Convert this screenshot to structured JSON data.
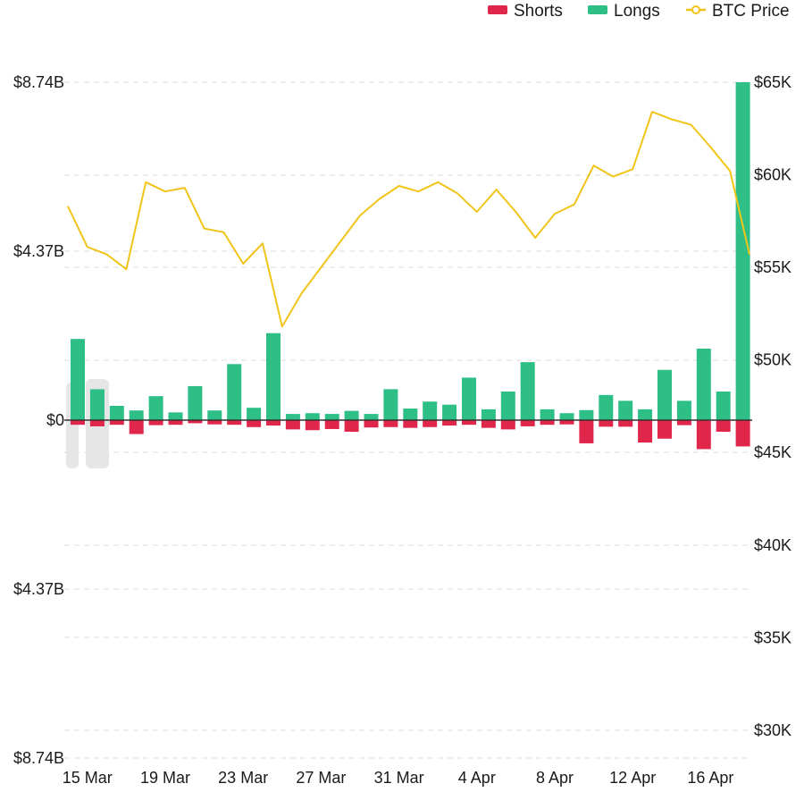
{
  "chart_data": {
    "type": "bar",
    "legend": {
      "placement": "top-right",
      "entries": [
        {
          "name": "Shorts",
          "color": "#e0264b",
          "marker": "bar"
        },
        {
          "name": "Longs",
          "color": "#2ebf86",
          "marker": "bar"
        },
        {
          "name": "BTC Price",
          "color": "#f0c419",
          "marker": "line"
        }
      ]
    },
    "left_axis": {
      "ticks": [
        {
          "value": 8.74,
          "label": "$8.74B"
        },
        {
          "value": 4.37,
          "label": "$4.37B"
        },
        {
          "value": 0,
          "label": "$0"
        },
        {
          "value": -4.37,
          "label": "$4.37B"
        },
        {
          "value": -8.74,
          "label": "$8.74B"
        }
      ],
      "range": [
        -8.74,
        8.74
      ]
    },
    "right_axis": {
      "ticks": [
        {
          "value": 65000,
          "label": "$65K"
        },
        {
          "value": 60000,
          "label": "$60K"
        },
        {
          "value": 55000,
          "label": "$55K"
        },
        {
          "value": 50000,
          "label": "$50K"
        },
        {
          "value": 45000,
          "label": "$45K"
        },
        {
          "value": 40000,
          "label": "$40K"
        },
        {
          "value": 35000,
          "label": "$35K"
        },
        {
          "value": 30000,
          "label": "$30K"
        }
      ],
      "range": [
        28500,
        65000
      ]
    },
    "x_ticks": [
      {
        "index": 1,
        "label": "15 Mar"
      },
      {
        "index": 5,
        "label": "19 Mar"
      },
      {
        "index": 9,
        "label": "23 Mar"
      },
      {
        "index": 13,
        "label": "27 Mar"
      },
      {
        "index": 17,
        "label": "31 Mar"
      },
      {
        "index": 21,
        "label": "4 Apr"
      },
      {
        "index": 25,
        "label": "8 Apr"
      },
      {
        "index": 29,
        "label": "12 Apr"
      },
      {
        "index": 33,
        "label": "16 Apr"
      }
    ],
    "series": [
      {
        "name": "Longs",
        "values": [
          2.1,
          0.8,
          0.37,
          0.25,
          0.62,
          0.2,
          0.88,
          0.25,
          1.45,
          0.32,
          2.25,
          0.16,
          0.18,
          0.16,
          0.24,
          0.16,
          0.8,
          0.3,
          0.48,
          0.4,
          1.1,
          0.28,
          0.74,
          1.5,
          0.28,
          0.18,
          0.26,
          0.65,
          0.5,
          0.28,
          1.3,
          0.5,
          1.85,
          0.74,
          8.74
        ]
      },
      {
        "name": "Shorts",
        "values": [
          -0.12,
          -0.16,
          -0.12,
          -0.36,
          -0.13,
          -0.12,
          -0.08,
          -0.11,
          -0.12,
          -0.18,
          -0.14,
          -0.24,
          -0.26,
          -0.23,
          -0.3,
          -0.19,
          -0.18,
          -0.2,
          -0.18,
          -0.14,
          -0.12,
          -0.2,
          -0.24,
          -0.16,
          -0.12,
          -0.11,
          -0.6,
          -0.17,
          -0.17,
          -0.58,
          -0.48,
          -0.13,
          -0.75,
          -0.3,
          -0.68
        ]
      },
      {
        "name": "BTC Price",
        "values": [
          58300,
          56100,
          55700,
          54900,
          59600,
          59100,
          59300,
          57100,
          56900,
          55200,
          56300,
          51800,
          53600,
          55000,
          56400,
          57800,
          58700,
          59400,
          59100,
          59600,
          59000,
          58000,
          59200,
          58000,
          56600,
          57900,
          58400,
          60500,
          59900,
          60300,
          63400,
          63000,
          62700,
          61500,
          60200,
          55700
        ]
      }
    ]
  }
}
